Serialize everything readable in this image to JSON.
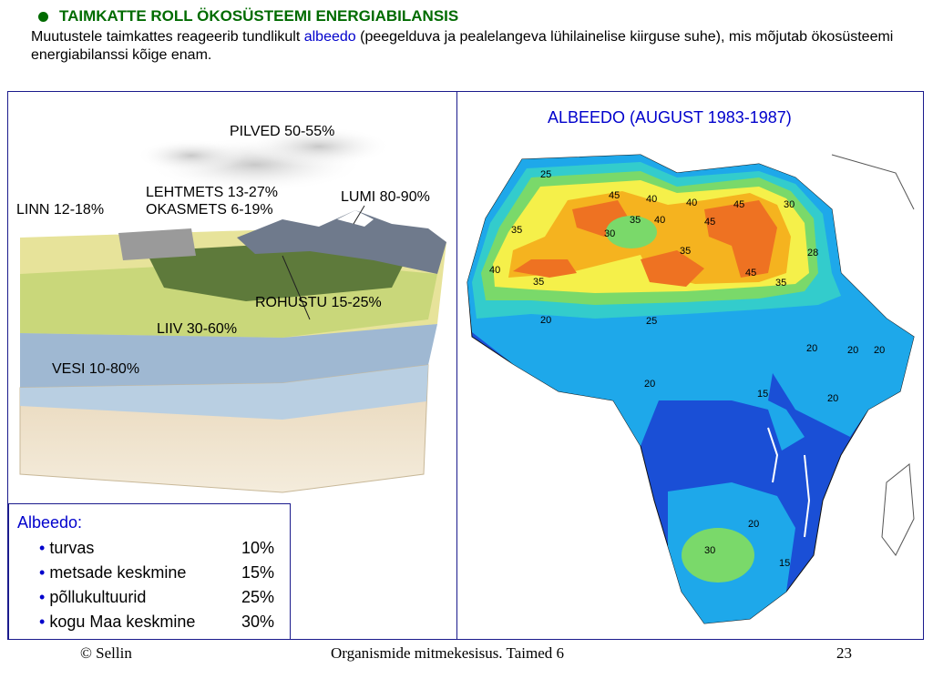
{
  "header": {
    "title": "TAIMKATTE ROLL ÖKOSÜSTEEMI ENERGIABILANSIS",
    "intro_part1": "Muutustele taimkattes reageerib tundlikult ",
    "intro_highlight": "albeedo",
    "intro_part2": " (peegelduva ja pealelangeva lühilainelise kiirguse suhe), mis mõjutab ökosüsteemi energiabilanssi kõige enam."
  },
  "diagram_labels": {
    "clouds": "PILVED 50-55%",
    "deciduous": "LEHTMETS 13-27%",
    "coniferous": "OKASMETS 6-19%",
    "snow": "LUMI 80-90%",
    "city": "LINN 12-18%",
    "grassland": "ROHUSTU 15-25%",
    "sand": "LIIV 30-60%",
    "water": "VESI 10-80%"
  },
  "map": {
    "title": "ALBEEDO (AUGUST 1983-1987)",
    "contour_labels": [
      "25",
      "45",
      "40",
      "40",
      "45",
      "30",
      "35",
      "30",
      "35",
      "40",
      "45",
      "35",
      "28",
      "40",
      "45",
      "35",
      "35",
      "20",
      "25",
      "20",
      "20",
      "20",
      "15",
      "20",
      "20",
      "20",
      "30",
      "15"
    ]
  },
  "legend": {
    "title": "Albeedo:",
    "items": [
      {
        "name": "turvas",
        "value": "10%"
      },
      {
        "name": "metsade keskmine",
        "value": "15%"
      },
      {
        "name": "põllukultuurid",
        "value": "25%"
      },
      {
        "name": "kogu Maa keskmine",
        "value": "30%"
      }
    ]
  },
  "footer": {
    "left": "© Sellin",
    "center": "Organismide mitmekesisus. Taimed 6",
    "right": "23"
  },
  "colors": {
    "title_green": "#006b00",
    "accent_blue": "#0000cc",
    "frame_blue": "#1a1a8c"
  }
}
